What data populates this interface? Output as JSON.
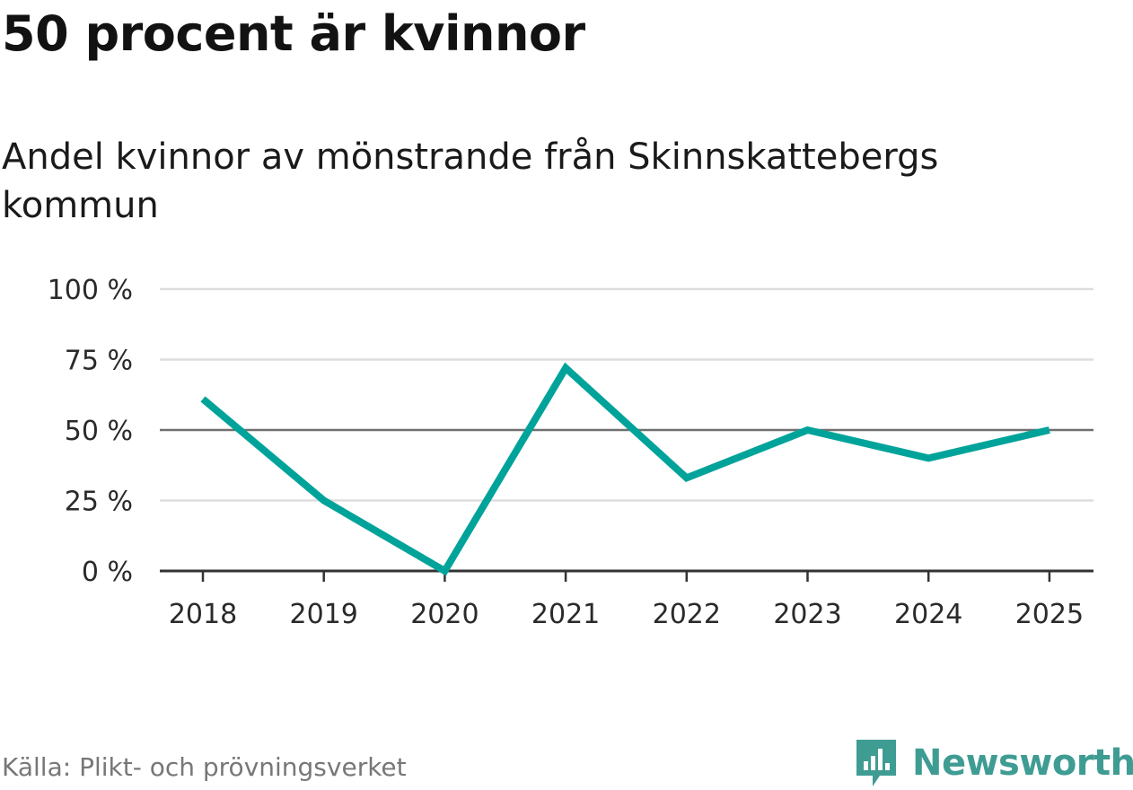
{
  "headline": "50 procent är kvinnor",
  "subtitle": "Andel kvinnor av mönstrande från Skinnskattebergs kommun",
  "source": "Källa: Plikt- och prövningsverket",
  "brand": {
    "name": "Newsworthy",
    "icon": "newsworthy-logo-icon"
  },
  "colors": {
    "line": "#00a39a",
    "reference": "#707070",
    "grid": "#dddddd",
    "axis": "#333333",
    "brand": "#3f9c93"
  },
  "chart_data": {
    "type": "line",
    "title": "50 procent är kvinnor",
    "subtitle": "Andel kvinnor av mönstrande från Skinnskattebergs kommun",
    "xlabel": "",
    "ylabel": "",
    "categories": [
      "2018",
      "2019",
      "2020",
      "2021",
      "2022",
      "2023",
      "2024",
      "2025"
    ],
    "series": [
      {
        "name": "Andel kvinnor",
        "values": [
          61,
          25,
          0,
          72,
          33,
          50,
          40,
          50
        ]
      }
    ],
    "ylim": [
      0,
      100
    ],
    "yticks": [
      0,
      25,
      50,
      75,
      100
    ],
    "ytick_labels": [
      "0 %",
      "25 %",
      "50 %",
      "75 %",
      "100 %"
    ],
    "reference_line": 50,
    "grid": true
  }
}
